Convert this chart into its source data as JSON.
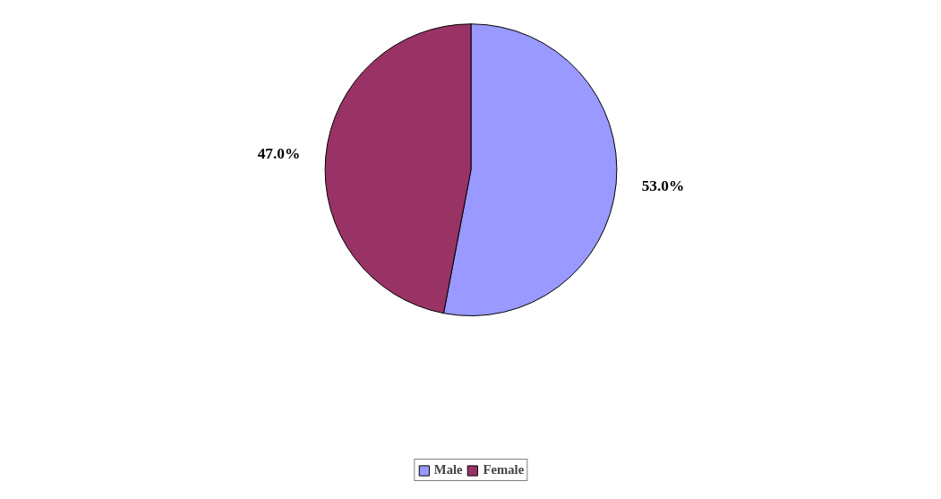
{
  "chart_data": {
    "type": "pie",
    "categories": [
      "Male",
      "Female"
    ],
    "values": [
      53.0,
      47.0
    ],
    "colors": [
      "#9999ff",
      "#993366"
    ],
    "value_labels": [
      "53.0%",
      "47.0%"
    ],
    "legend": "bottom"
  }
}
